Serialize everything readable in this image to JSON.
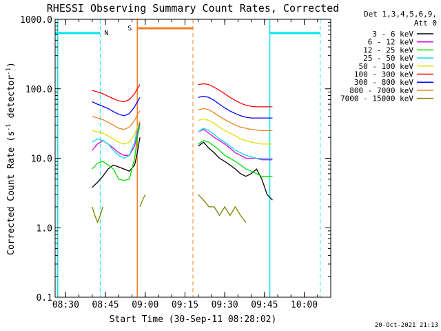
{
  "chart_data": {
    "type": "line",
    "title": "RHESSI Observing Summary Count Rates, Corrected",
    "xlabel": "Start Time (30-Sep-11 08:28:02)",
    "ylabel": "Corrected Count Rate (s",
    "ylabel_sup1": "-1",
    "ylabel_mid": " detector",
    "ylabel_sup2": "-1",
    "ylabel_end": ")",
    "yscale": "log",
    "ylim": [
      0.1,
      1000
    ],
    "xlim": [
      "08:26",
      "10:10"
    ],
    "x_ticks": [
      "08:30",
      "08:45",
      "09:00",
      "09:15",
      "09:30",
      "09:45",
      "10:00"
    ],
    "y_ticks": [
      "0.1",
      "1.0",
      "10.0",
      "100.0",
      "1000.0"
    ],
    "detector_info": "Det 1,3,4,5,6,9,",
    "attenuator_info": "Att 0",
    "timestamp": "20-Oct-2021 21:13",
    "night_label": "N",
    "saa_label": "S",
    "colors": {
      "night": "#00e5ee",
      "saa": "#f08020"
    },
    "night_intervals": [
      [
        "08:26",
        "08:43"
      ],
      [
        "09:47",
        "10:06"
      ]
    ],
    "night_lines": [
      "08:27",
      "09:47"
    ],
    "night_dashed": [
      "08:43",
      "10:06"
    ],
    "saa_intervals": [
      [
        "08:57",
        "09:18"
      ]
    ],
    "saa_line": "08:57",
    "saa_dashed": "09:18",
    "series": [
      {
        "name": "3 - 6 keV",
        "color": "#000000",
        "segments": [
          {
            "x": [
              "08:40",
              "08:42",
              "08:44",
              "08:46",
              "08:48",
              "08:50",
              "08:52",
              "08:54",
              "08:56",
              "08:57",
              "08:58"
            ],
            "y": [
              3.8,
              4.5,
              5.5,
              7,
              8,
              7.5,
              7,
              6.5,
              8,
              12,
              20
            ]
          },
          {
            "x": [
              "09:20",
              "09:22",
              "09:24",
              "09:26",
              "09:28",
              "09:30",
              "09:32",
              "09:34",
              "09:36",
              "09:38",
              "09:40",
              "09:42",
              "09:44",
              "09:46",
              "09:48"
            ],
            "y": [
              15,
              17,
              14,
              12,
              10,
              9,
              8,
              7,
              6,
              5.5,
              6,
              7,
              5,
              3,
              2.5
            ]
          }
        ]
      },
      {
        "name": "6 - 12 keV",
        "color": "#e000e0",
        "segments": [
          {
            "x": [
              "08:40",
              "08:42",
              "08:44",
              "08:46",
              "08:48",
              "08:50",
              "08:52",
              "08:54",
              "08:56",
              "08:57",
              "08:58"
            ],
            "y": [
              13,
              16,
              18,
              16,
              14,
              12,
              11,
              11,
              15,
              22,
              33
            ]
          },
          {
            "x": [
              "09:20",
              "09:22",
              "09:24",
              "09:26",
              "09:28",
              "09:30",
              "09:32",
              "09:34",
              "09:36",
              "09:38",
              "09:40",
              "09:42",
              "09:44",
              "09:46",
              "09:48"
            ],
            "y": [
              24,
              26,
              23,
              20,
              18,
              16,
              14,
              12,
              11,
              10,
              10,
              10,
              9.5,
              9.5,
              9.5
            ]
          }
        ]
      },
      {
        "name": "12 - 25 keV",
        "color": "#00e000",
        "segments": [
          {
            "x": [
              "08:40",
              "08:42",
              "08:44",
              "08:46",
              "08:48",
              "08:50",
              "08:52",
              "08:54",
              "08:56",
              "08:57",
              "08:58"
            ],
            "y": [
              7,
              8.5,
              9,
              8,
              7,
              5,
              4.8,
              5,
              10,
              20,
              30
            ]
          },
          {
            "x": [
              "09:20",
              "09:22",
              "09:24",
              "09:26",
              "09:28",
              "09:30",
              "09:32",
              "09:34",
              "09:36",
              "09:38",
              "09:40",
              "09:42",
              "09:44",
              "09:46",
              "09:48"
            ],
            "y": [
              16,
              18,
              17,
              15,
              13,
              11,
              10,
              9,
              8,
              7,
              6.5,
              6,
              5.5,
              5.5,
              5.5
            ]
          }
        ]
      },
      {
        "name": "25 - 50 keV",
        "color": "#00e0e0",
        "segments": [
          {
            "x": [
              "08:40",
              "08:42",
              "08:44",
              "08:46",
              "08:48",
              "08:50",
              "08:52",
              "08:54",
              "08:56",
              "08:57",
              "08:58"
            ],
            "y": [
              17,
              19,
              18,
              16,
              13,
              11,
              10,
              11,
              17,
              27,
              35
            ]
          },
          {
            "x": [
              "09:20",
              "09:22",
              "09:24",
              "09:26",
              "09:28",
              "09:30",
              "09:32",
              "09:34",
              "09:36",
              "09:38",
              "09:40",
              "09:42",
              "09:44",
              "09:46",
              "09:48"
            ],
            "y": [
              24,
              27,
              25,
              22,
              19,
              17,
              15,
              13,
              12,
              11,
              10.5,
              10,
              10,
              10,
              10
            ]
          }
        ]
      },
      {
        "name": "50 - 100 keV",
        "color": "#e0e000",
        "segments": [
          {
            "x": [
              "08:40",
              "08:42",
              "08:44",
              "08:46",
              "08:48",
              "08:50",
              "08:52",
              "08:54",
              "08:56",
              "08:57",
              "08:58"
            ],
            "y": [
              25,
              24,
              23,
              21,
              19,
              17,
              16,
              17,
              22,
              28,
              35
            ]
          },
          {
            "x": [
              "09:20",
              "09:22",
              "09:24",
              "09:26",
              "09:28",
              "09:30",
              "09:32",
              "09:34",
              "09:36",
              "09:38",
              "09:40",
              "09:42",
              "09:44",
              "09:46",
              "09:48"
            ],
            "y": [
              35,
              37,
              35,
              32,
              28,
              25,
              23,
              21,
              19,
              18,
              17,
              16.5,
              16,
              16,
              16
            ]
          }
        ]
      },
      {
        "name": "100 - 300 keV",
        "color": "#ff0000",
        "segments": [
          {
            "x": [
              "08:40",
              "08:42",
              "08:44",
              "08:46",
              "08:48",
              "08:50",
              "08:52",
              "08:54",
              "08:56",
              "08:57",
              "08:58"
            ],
            "y": [
              95,
              90,
              85,
              78,
              72,
              67,
              65,
              70,
              85,
              100,
              115
            ]
          },
          {
            "x": [
              "09:20",
              "09:22",
              "09:24",
              "09:26",
              "09:28",
              "09:30",
              "09:32",
              "09:34",
              "09:36",
              "09:38",
              "09:40",
              "09:42",
              "09:44",
              "09:46",
              "09:48"
            ],
            "y": [
              115,
              118,
              115,
              105,
              95,
              85,
              75,
              68,
              62,
              58,
              56,
              55,
              55,
              55,
              55
            ]
          }
        ]
      },
      {
        "name": "300 - 800 keV",
        "color": "#0000ff",
        "segments": [
          {
            "x": [
              "08:40",
              "08:42",
              "08:44",
              "08:46",
              "08:48",
              "08:50",
              "08:52",
              "08:54",
              "08:56",
              "08:57",
              "08:58"
            ],
            "y": [
              65,
              60,
              56,
              52,
              47,
              43,
              41,
              44,
              55,
              65,
              75
            ]
          },
          {
            "x": [
              "09:20",
              "09:22",
              "09:24",
              "09:26",
              "09:28",
              "09:30",
              "09:32",
              "09:34",
              "09:36",
              "09:38",
              "09:40",
              "09:42",
              "09:44",
              "09:46",
              "09:48"
            ],
            "y": [
              75,
              78,
              75,
              68,
              60,
              53,
              48,
              44,
              41,
              39,
              38,
              38,
              38,
              38,
              38
            ]
          }
        ]
      },
      {
        "name": "800 - 7000 keV",
        "color": "#f08020",
        "segments": [
          {
            "x": [
              "08:40",
              "08:42",
              "08:44",
              "08:46",
              "08:48",
              "08:50",
              "08:52",
              "08:54",
              "08:56",
              "08:57",
              "08:58"
            ],
            "y": [
              40,
              38,
              36,
              33,
              30,
              27,
              26,
              28,
              35,
              42,
              48
            ]
          },
          {
            "x": [
              "09:20",
              "09:22",
              "09:24",
              "09:26",
              "09:28",
              "09:30",
              "09:32",
              "09:34",
              "09:36",
              "09:38",
              "09:40",
              "09:42",
              "09:44",
              "09:46",
              "09:48"
            ],
            "y": [
              50,
              52,
              50,
              45,
              40,
              36,
              33,
              30,
              28,
              27,
              26,
              25.5,
              25,
              25,
              25
            ]
          }
        ]
      },
      {
        "name": "7000 - 15000 keV",
        "color": "#808000",
        "segments": [
          {
            "x": [
              "08:40",
              "08:41",
              "08:42",
              "08:43",
              "08:44"
            ],
            "y": [
              2,
              1.5,
              1.2,
              1.5,
              2
            ]
          },
          {
            "x": [
              "08:58",
              "08:59",
              "09:00"
            ],
            "y": [
              2,
              2.5,
              3
            ]
          },
          {
            "x": [
              "09:20",
              "09:22",
              "09:24",
              "09:26",
              "09:28",
              "09:30",
              "09:32",
              "09:34",
              "09:36",
              "09:38"
            ],
            "y": [
              3,
              2.5,
              2,
              2,
              1.5,
              2,
              1.5,
              2,
              1.5,
              1.2
            ]
          }
        ]
      }
    ]
  }
}
